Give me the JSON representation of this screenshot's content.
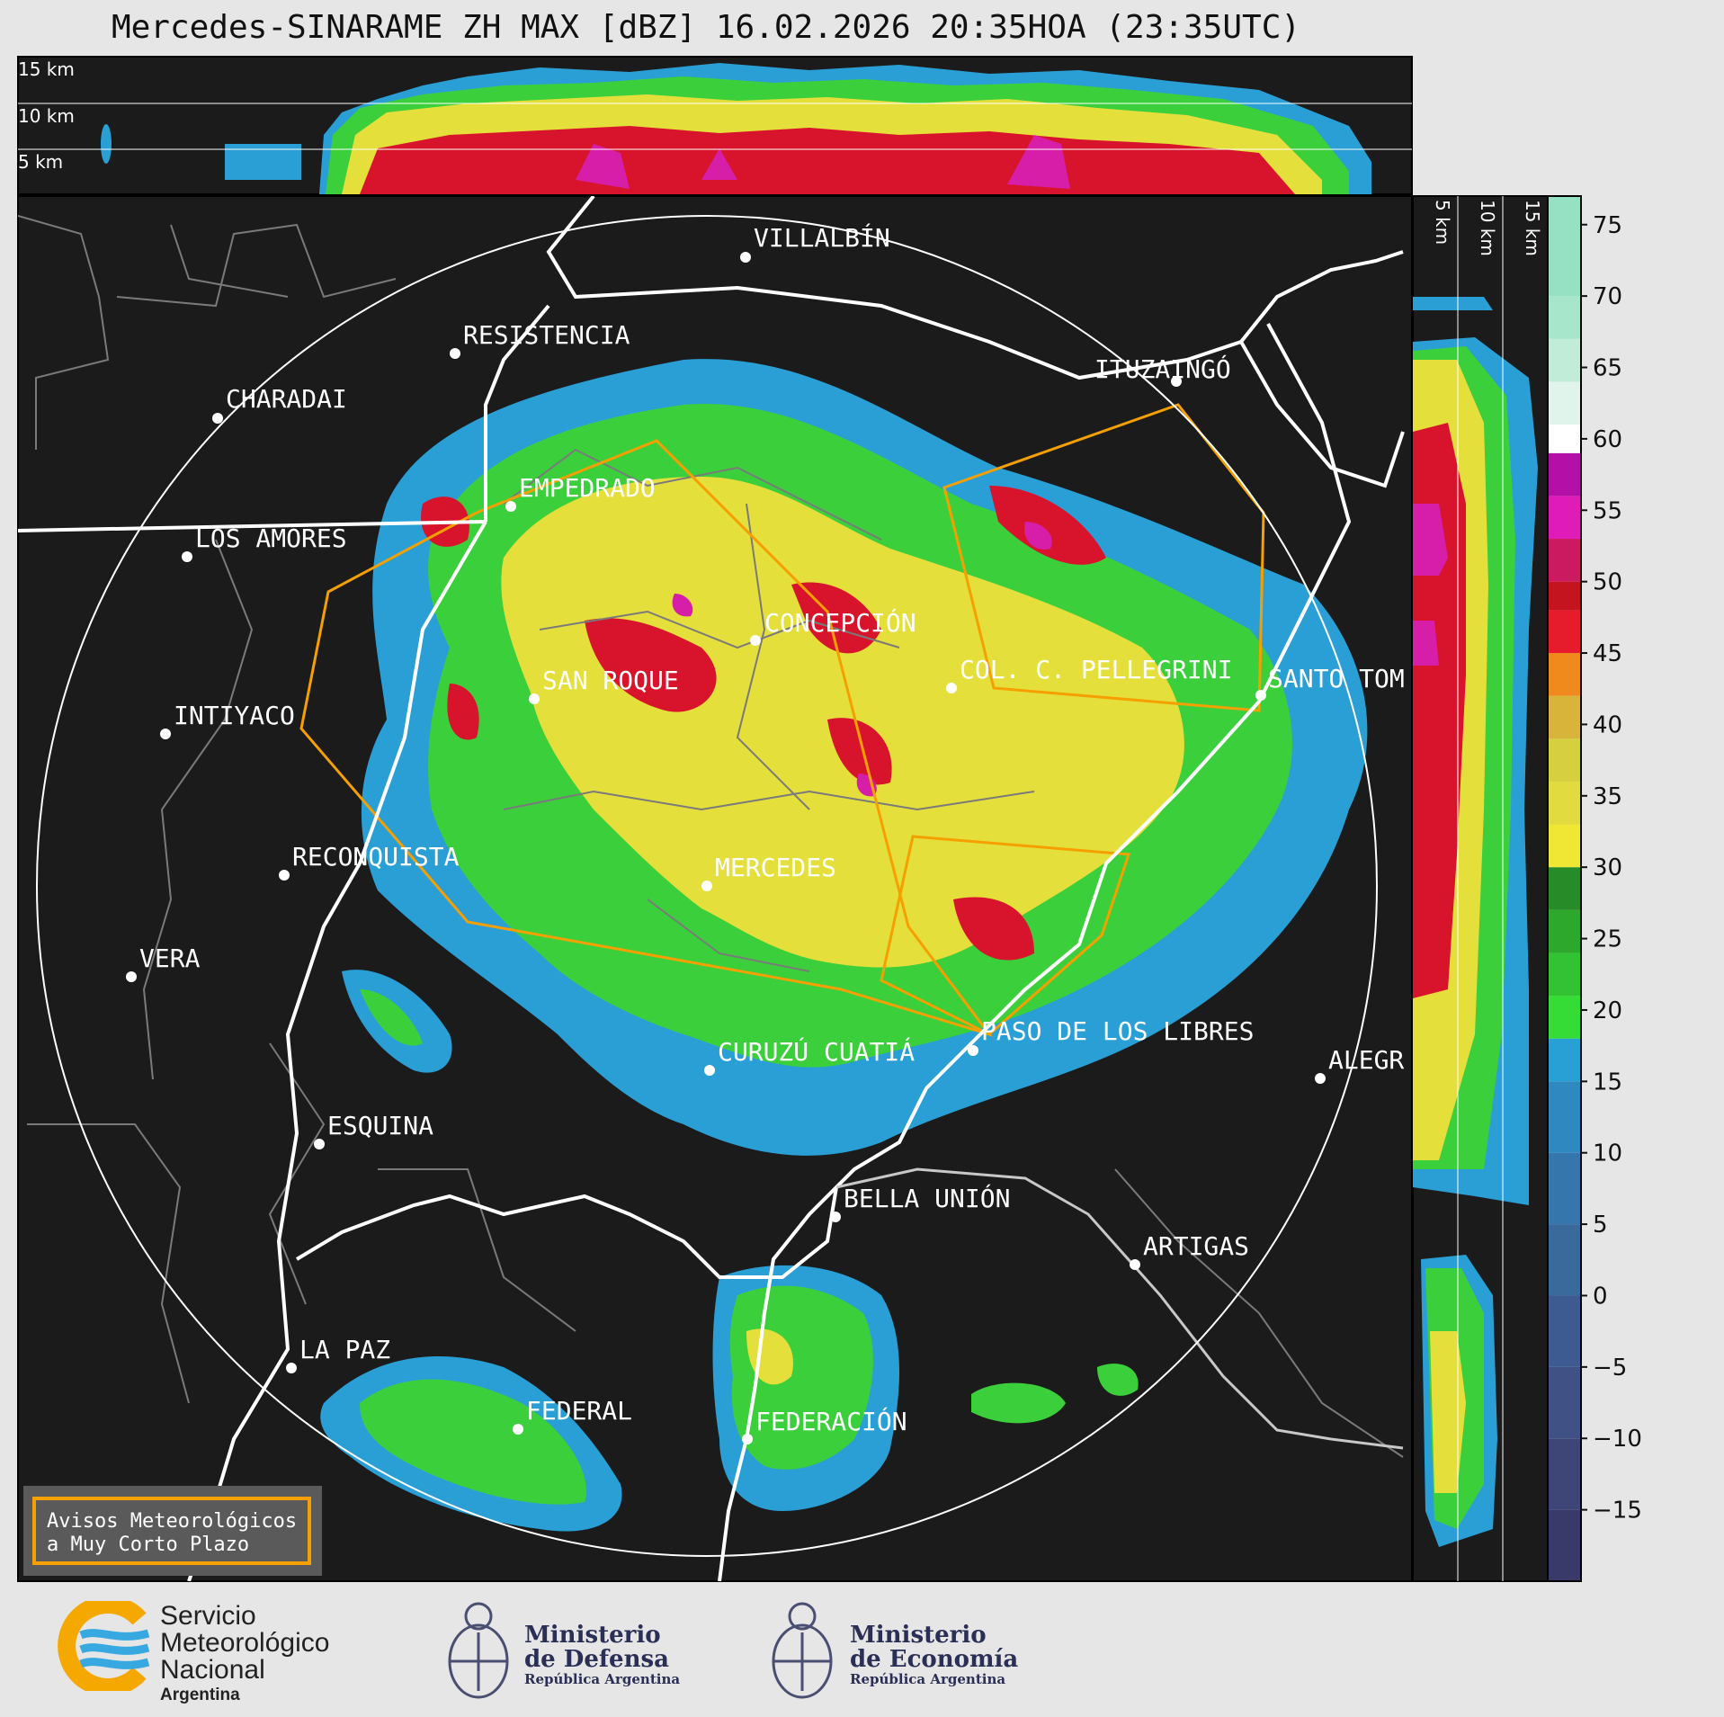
{
  "title": "Mercedes-SINARAME ZH MAX [dBZ] 16.02.2026 20:35HOA (23:35UTC)",
  "top_profile_labels": [
    "15 km",
    "10 km",
    "5 km"
  ],
  "side_profile_labels": [
    "5 km",
    "10 km",
    "15 km"
  ],
  "colorbar": {
    "ticks": [
      "75",
      "70",
      "65",
      "60",
      "55",
      "50",
      "45",
      "40",
      "35",
      "30",
      "25",
      "20",
      "15",
      "10",
      "5",
      "0",
      "−5",
      "−10",
      "−15"
    ],
    "range": [
      -20,
      77
    ]
  },
  "cities": [
    {
      "name": "VILLALBÍN"
    },
    {
      "name": "RESISTENCIA"
    },
    {
      "name": "CHARADAI"
    },
    {
      "name": "ITUZAINGÓ"
    },
    {
      "name": "EMPEDRADO"
    },
    {
      "name": "LOS AMORES"
    },
    {
      "name": "CONCEPCIÓN"
    },
    {
      "name": "SAN ROQUE"
    },
    {
      "name": "COL. C. PELLEGRINI"
    },
    {
      "name": "SANTO TOM"
    },
    {
      "name": "INTIYACO"
    },
    {
      "name": "RECONQUISTA"
    },
    {
      "name": "MERCEDES"
    },
    {
      "name": "VERA"
    },
    {
      "name": "PASO DE LOS LIBRES"
    },
    {
      "name": "CURUZÚ CUATIÁ"
    },
    {
      "name": "ALEGR"
    },
    {
      "name": "ESQUINA"
    },
    {
      "name": "BELLA UNIÓN"
    },
    {
      "name": "ARTIGAS"
    },
    {
      "name": "LA PAZ"
    },
    {
      "name": "FEDERAL"
    },
    {
      "name": "FEDERACIÓN"
    }
  ],
  "warning_box": {
    "line1": "Avisos Meteorológicos",
    "line2": "a Muy Corto Plazo",
    "border_color": "#f5a000"
  },
  "footer": {
    "smn": {
      "line1": "Servicio",
      "line2": "Meteorológico",
      "line3": "Nacional",
      "line4": "Argentina"
    },
    "defensa": {
      "line1": "Ministerio",
      "line2": "de Defensa",
      "line3": "República Argentina"
    },
    "economia": {
      "line1": "Ministerio",
      "line2": "de Economía",
      "line3": "República Argentina"
    }
  },
  "colors": {
    "background": "#1b1b1b",
    "warning_polygon": "#f5a000",
    "range_ring": "#ffffff",
    "border": "#ffffff",
    "roads": "#7a7a7a"
  }
}
